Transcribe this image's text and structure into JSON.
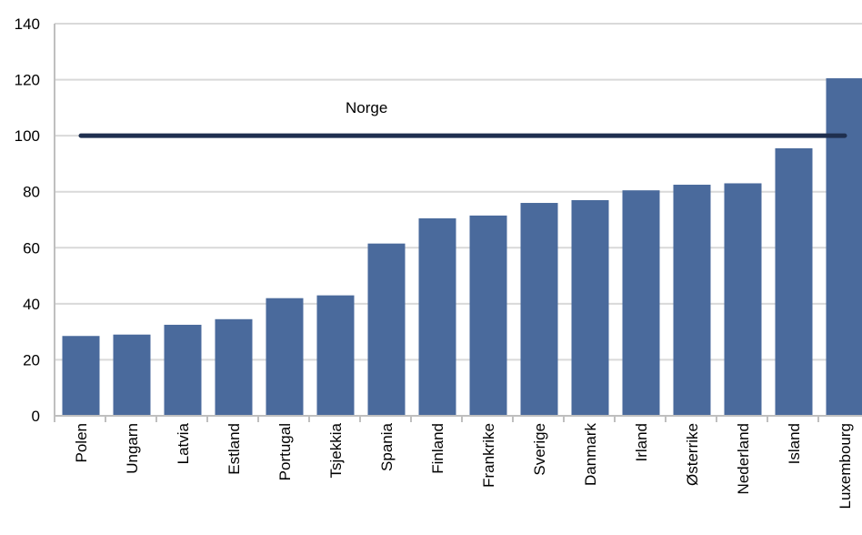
{
  "chart_data": {
    "type": "bar",
    "categories": [
      "Polen",
      "Ungarn",
      "Latvia",
      "Estland",
      "Portugal",
      "Tsjekkia",
      "Spania",
      "Finland",
      "Frankrike",
      "Sverige",
      "Danmark",
      "Irland",
      "Østerrike",
      "Nederland",
      "Island",
      "Luxembourg"
    ],
    "values": [
      28.5,
      29,
      32.5,
      34.5,
      42,
      43,
      61.5,
      70.5,
      71.5,
      76,
      77,
      80.5,
      82.5,
      83,
      95.5,
      120.5
    ],
    "title": "",
    "xlabel": "",
    "ylabel": "",
    "ylim": [
      0,
      140
    ],
    "yticks": [
      0,
      20,
      40,
      60,
      80,
      100,
      120,
      140
    ],
    "grid": true,
    "reference_line": {
      "label": "Norge",
      "value": 100
    },
    "colors": {
      "bar": "#4a6a9c",
      "reference": "#1f2f4f",
      "grid": "#d9d9d9",
      "axis": "#bfbfbf"
    }
  }
}
